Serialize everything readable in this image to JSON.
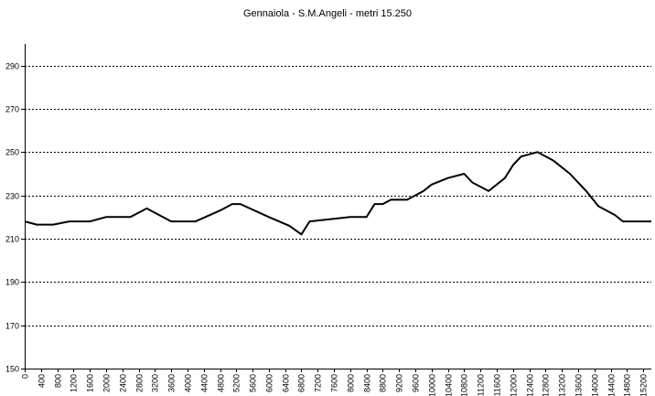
{
  "chart_data": {
    "type": "line",
    "title": "Gennaiola - S.M.Angeli - metri 15.250",
    "xlabel": "",
    "ylabel": "",
    "xlim": [
      0,
      15400
    ],
    "ylim": [
      150,
      300
    ],
    "grid": true,
    "y_ticks": [
      150,
      170,
      190,
      210,
      230,
      250,
      270,
      290
    ],
    "x_ticks": [
      0,
      400,
      800,
      1200,
      1600,
      2000,
      2400,
      2800,
      3200,
      3600,
      4000,
      4400,
      4800,
      5200,
      5600,
      6000,
      6400,
      6800,
      7200,
      7600,
      8000,
      8400,
      8800,
      9200,
      9600,
      10000,
      10400,
      10800,
      11200,
      11600,
      12000,
      12400,
      12800,
      13200,
      13600,
      14000,
      14400,
      14800,
      15200
    ],
    "series": [
      {
        "color": "#000000",
        "x": [
          0,
          300,
          700,
          1100,
          1600,
          2000,
          2600,
          3000,
          3600,
          4200,
          4800,
          5100,
          5300,
          6000,
          6500,
          6800,
          7000,
          8000,
          8400,
          8600,
          8800,
          9000,
          9400,
          9800,
          10000,
          10400,
          10800,
          11000,
          11400,
          11800,
          12000,
          12200,
          12600,
          13000,
          13400,
          13800,
          14100,
          14500,
          14700,
          15400
        ],
        "y": [
          218,
          216.5,
          216.5,
          218,
          218,
          220,
          220,
          224,
          218,
          218,
          223,
          226,
          226,
          220,
          216,
          212,
          218,
          220,
          220,
          226,
          226,
          228,
          228,
          232,
          235,
          238,
          240,
          236,
          232,
          238,
          244,
          248,
          250,
          246,
          240,
          232,
          225,
          221,
          218,
          218
        ]
      }
    ]
  }
}
